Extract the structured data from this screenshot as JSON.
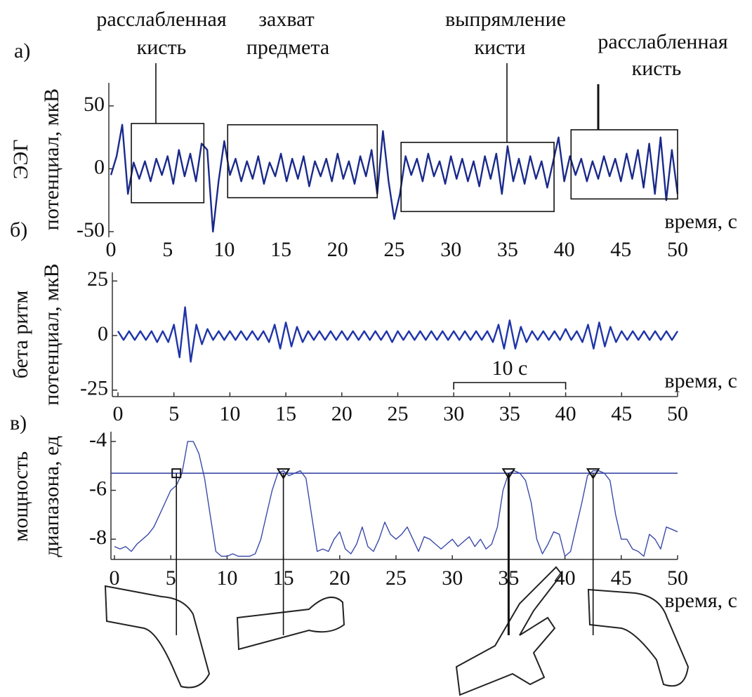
{
  "chart_data": [
    {
      "type": "line",
      "panel_label": "а)",
      "ylabel": [
        "ЭЭГ",
        "потенциал, мкВ"
      ],
      "xlabel": "время, с",
      "color": "#1a2a8a",
      "xlim": [
        0,
        50
      ],
      "ylim": [
        -50,
        65
      ],
      "xticks": [
        0,
        5,
        10,
        15,
        20,
        25,
        30,
        35,
        40,
        45,
        50
      ],
      "yticks": [
        -50,
        0,
        50
      ],
      "x": [
        0,
        0.5,
        1,
        1.5,
        2,
        2.5,
        3,
        3.5,
        4,
        4.5,
        5,
        5.5,
        6,
        6.5,
        7,
        7.5,
        8,
        8.5,
        9,
        9.5,
        10,
        10.5,
        11,
        11.5,
        12,
        12.5,
        13,
        13.5,
        14,
        14.5,
        15,
        15.5,
        16,
        16.5,
        17,
        17.5,
        18,
        18.5,
        19,
        19.5,
        20,
        20.5,
        21,
        21.5,
        22,
        22.5,
        23,
        23.5,
        24,
        24.5,
        25,
        25.5,
        26,
        26.5,
        27,
        27.5,
        28,
        28.5,
        29,
        29.5,
        30,
        30.5,
        31,
        31.5,
        32,
        32.5,
        33,
        33.5,
        34,
        34.5,
        35,
        35.5,
        36,
        36.5,
        37,
        37.5,
        38,
        38.5,
        39,
        39.5,
        40,
        40.5,
        41,
        41.5,
        42,
        42.5,
        43,
        43.5,
        44,
        44.5,
        45,
        45.5,
        46,
        46.5,
        47,
        47.5,
        48,
        48.5,
        49,
        49.5,
        50
      ],
      "values": [
        -5,
        10,
        35,
        -20,
        5,
        -8,
        6,
        -10,
        8,
        -5,
        10,
        -12,
        15,
        -6,
        12,
        -10,
        20,
        15,
        -50,
        -10,
        22,
        -5,
        8,
        -10,
        6,
        -8,
        10,
        -12,
        5,
        -6,
        12,
        -10,
        8,
        -8,
        10,
        -14,
        6,
        -6,
        8,
        -10,
        12,
        -8,
        6,
        -12,
        10,
        -6,
        15,
        -20,
        30,
        -10,
        -40,
        -20,
        10,
        -5,
        8,
        -10,
        12,
        -6,
        6,
        -12,
        10,
        -8,
        8,
        -10,
        6,
        -14,
        10,
        -8,
        12,
        -20,
        18,
        -10,
        8,
        -12,
        10,
        -8,
        6,
        -15,
        5,
        25,
        -10,
        10,
        -5,
        8,
        -10,
        6,
        -8,
        10,
        -6,
        8,
        -10,
        12,
        -8,
        15,
        -15,
        20,
        -20,
        25,
        -25,
        15,
        -20
      ],
      "annotations": [
        {
          "lines": [
            "расслабленная",
            "кисть"
          ],
          "x": [
            1.8,
            8.2
          ],
          "y": [
            -27,
            36
          ]
        },
        {
          "lines": [
            "захват",
            "предмета"
          ],
          "x": [
            10.3,
            23.5
          ],
          "y": [
            -23,
            35
          ]
        },
        {
          "lines": [
            "выпрямление",
            "кисти"
          ],
          "x": [
            25.6,
            39.1
          ],
          "y": [
            -34,
            21
          ]
        },
        {
          "lines": [
            "расслабленная",
            "кисть"
          ],
          "x": [
            40.6,
            50
          ],
          "y": [
            -24,
            31
          ]
        }
      ]
    },
    {
      "type": "line",
      "panel_label": "б)",
      "ylabel": [
        "бета ритм",
        "потенциал, мкВ"
      ],
      "xlabel": "время, с",
      "color": "#1f35a8",
      "xlim": [
        0,
        50
      ],
      "ylim": [
        -27,
        28
      ],
      "xticks": [
        0,
        5,
        10,
        15,
        20,
        25,
        30,
        35,
        40,
        45,
        50
      ],
      "yticks": [
        -25,
        0,
        25
      ],
      "x": [
        0,
        0.5,
        1,
        1.5,
        2,
        2.5,
        3,
        3.5,
        4,
        4.5,
        5,
        5.5,
        6,
        6.5,
        7,
        7.5,
        8,
        8.5,
        9,
        9.5,
        10,
        10.5,
        11,
        11.5,
        12,
        12.5,
        13,
        13.5,
        14,
        14.5,
        15,
        15.5,
        16,
        16.5,
        17,
        17.5,
        18,
        18.5,
        19,
        19.5,
        20,
        20.5,
        21,
        21.5,
        22,
        22.5,
        23,
        23.5,
        24,
        24.5,
        25,
        25.5,
        26,
        26.5,
        27,
        27.5,
        28,
        28.5,
        29,
        29.5,
        30,
        30.5,
        31,
        31.5,
        32,
        32.5,
        33,
        33.5,
        34,
        34.5,
        35,
        35.5,
        36,
        36.5,
        37,
        37.5,
        38,
        38.5,
        39,
        39.5,
        40,
        40.5,
        41,
        41.5,
        42,
        42.5,
        43,
        43.5,
        44,
        44.5,
        45,
        45.5,
        46,
        46.5,
        47,
        47.5,
        48,
        48.5,
        49,
        49.5,
        50
      ],
      "values": [
        2,
        -2,
        2,
        -2,
        2,
        -2,
        2,
        -3,
        2,
        -3,
        5,
        -10,
        13,
        -12,
        5,
        -4,
        3,
        -2,
        2,
        -2,
        2,
        -2,
        2,
        -2,
        2,
        -2,
        2,
        -3,
        5,
        -6,
        6,
        -5,
        4,
        -3,
        2,
        -2,
        2,
        -2,
        2,
        -2,
        2,
        -2,
        2,
        -2,
        2,
        -2,
        2,
        -2,
        2,
        -3,
        2,
        -2,
        2,
        -2,
        2,
        -2,
        2,
        -2,
        2,
        -2,
        2,
        -2,
        2,
        -2,
        2,
        -2,
        2,
        -3,
        5,
        -6,
        7,
        -6,
        4,
        -3,
        2,
        -2,
        2,
        -2,
        2,
        -2,
        3,
        -2,
        2,
        -3,
        5,
        -6,
        6,
        -5,
        4,
        -3,
        2,
        -2,
        2,
        -2,
        2,
        -2,
        2,
        -2,
        2,
        -2,
        2
      ],
      "scale_bar": {
        "label": "10 с",
        "x": [
          30,
          40
        ]
      }
    },
    {
      "type": "line",
      "panel_label": "в)",
      "ylabel": [
        "мощность",
        "диапазона, ед"
      ],
      "xlabel": "время, с",
      "color": "#3c4aa8",
      "xlim": [
        0,
        50
      ],
      "ylim": [
        -8.8,
        -3.7
      ],
      "xticks": [
        0,
        5,
        10,
        15,
        20,
        25,
        30,
        35,
        40,
        45,
        50
      ],
      "yticks": [
        -8,
        -6,
        -4
      ],
      "x": [
        0,
        0.5,
        1,
        1.5,
        2,
        2.5,
        3,
        3.5,
        4,
        4.5,
        5,
        5.5,
        6,
        6.5,
        7,
        7.5,
        8,
        8.5,
        9,
        9.5,
        10,
        10.5,
        11,
        11.5,
        12,
        12.5,
        13,
        13.5,
        14,
        14.5,
        15,
        15.5,
        16,
        16.5,
        17,
        17.5,
        18,
        18.5,
        19,
        19.5,
        20,
        20.5,
        21,
        21.5,
        22,
        22.5,
        23,
        23.5,
        24,
        24.5,
        25,
        25.5,
        26,
        26.5,
        27,
        27.5,
        28,
        28.5,
        29,
        29.5,
        30,
        30.5,
        31,
        31.5,
        32,
        32.5,
        33,
        33.5,
        34,
        34.5,
        35,
        35.5,
        36,
        36.5,
        37,
        37.5,
        38,
        38.5,
        39,
        39.5,
        40,
        40.5,
        41,
        41.5,
        42,
        42.5,
        43,
        43.5,
        44,
        44.5,
        45,
        45.5,
        46,
        46.5,
        47,
        47.5,
        48,
        48.5,
        49,
        49.5,
        50
      ],
      "values": [
        -8.3,
        -8.4,
        -8.3,
        -8.5,
        -8.2,
        -8.0,
        -7.8,
        -7.5,
        -7.0,
        -6.5,
        -6.0,
        -5.8,
        -5.3,
        -4.0,
        -4.0,
        -4.5,
        -5.5,
        -7.0,
        -8.5,
        -8.7,
        -8.7,
        -8.6,
        -8.7,
        -8.7,
        -8.7,
        -8.6,
        -8.0,
        -7.0,
        -6.0,
        -5.3,
        -5.2,
        -5.4,
        -5.3,
        -5.2,
        -5.5,
        -7.0,
        -8.5,
        -8.4,
        -8.5,
        -8.0,
        -7.7,
        -8.4,
        -8.6,
        -8.2,
        -7.5,
        -8.3,
        -8.5,
        -8.0,
        -7.3,
        -7.8,
        -8.0,
        -7.8,
        -7.5,
        -8.0,
        -8.5,
        -7.9,
        -8.0,
        -8.2,
        -8.4,
        -8.2,
        -8.0,
        -8.3,
        -8.1,
        -7.9,
        -8.3,
        -8.0,
        -8.4,
        -8.2,
        -7.5,
        -6.0,
        -5.3,
        -5.2,
        -5.3,
        -5.6,
        -6.5,
        -8.0,
        -8.6,
        -8.2,
        -7.7,
        -7.8,
        -8.7,
        -8.5,
        -7.5,
        -6.5,
        -5.4,
        -5.2,
        -5.2,
        -5.3,
        -5.6,
        -7.0,
        -8.0,
        -8.0,
        -8.4,
        -8.5,
        -8.7,
        -7.8,
        -8.0,
        -8.4,
        -7.5,
        -7.6,
        -7.7
      ],
      "threshold": -5.3,
      "markers": [
        5.5,
        15,
        35,
        42.5
      ]
    }
  ]
}
